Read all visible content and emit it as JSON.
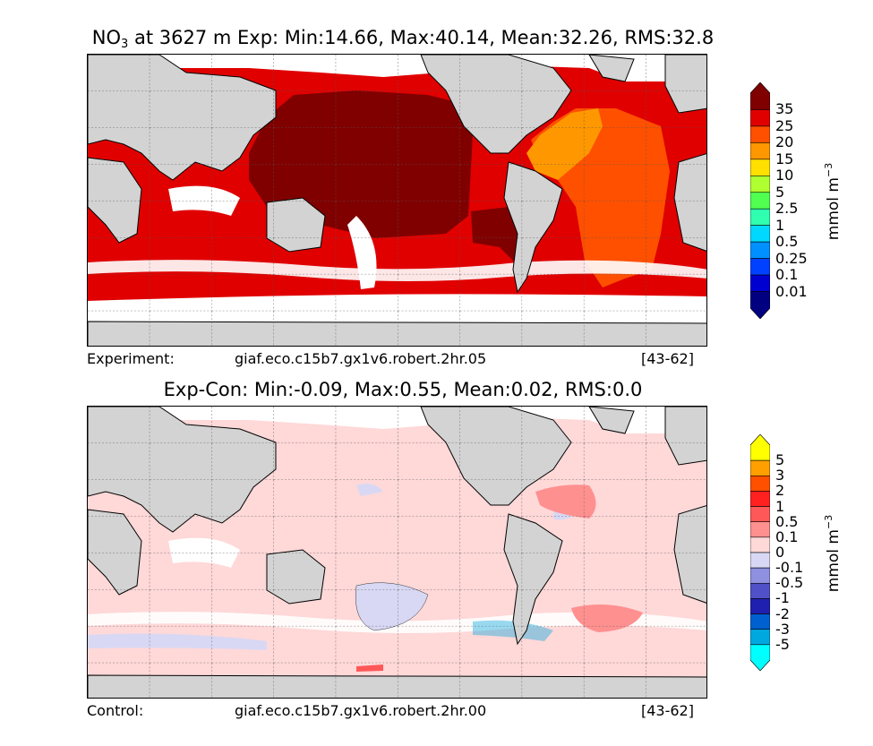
{
  "top_panel": {
    "title_species": "NO",
    "title_subscript": "3",
    "title_rest": " at 3627 m Exp: Min:14.66, Max:40.14, Mean:32.26, RMS:32.8",
    "caption_left": "Experiment:",
    "caption_run": "giaf.eco.c15b7.gx1v6.robert.2hr.05",
    "caption_years": "[43-62]",
    "colorbar": {
      "labels": [
        "35",
        "25",
        "20",
        "15",
        "10",
        "5",
        "2.5",
        "1",
        "0.5",
        "0.25",
        "0.1",
        "0.01"
      ],
      "colors": [
        "#800000",
        "#e00000",
        "#ff5000",
        "#ff9800",
        "#ffe000",
        "#b0ff30",
        "#50ff50",
        "#30ffb0",
        "#00d8ff",
        "#0090ff",
        "#0040ff",
        "#0000d0",
        "#000080"
      ],
      "unit": "mmol m",
      "unit_exp": "−3"
    }
  },
  "bottom_panel": {
    "title": "Exp-Con: Min:-0.09, Max:0.55, Mean:0.02, RMS:0.0",
    "caption_left": "Control:",
    "caption_run": "giaf.eco.c15b7.gx1v6.robert.2hr.00",
    "caption_years": "[43-62]",
    "colorbar": {
      "labels": [
        "5",
        "3",
        "2",
        "1",
        "0.5",
        "0.1",
        "0",
        "-0.1",
        "-0.5",
        "-1",
        "-2",
        "-3",
        "-5"
      ],
      "colors": [
        "#ffff00",
        "#ffa000",
        "#ff5000",
        "#ff2020",
        "#ff5858",
        "#ff9090",
        "#ffd8d8",
        "#d8d8f4",
        "#9090e0",
        "#5050c8",
        "#2020b0",
        "#0060d0",
        "#00a8e0",
        "#00ffff"
      ],
      "unit": "mmol m",
      "unit_exp": "−3"
    }
  }
}
